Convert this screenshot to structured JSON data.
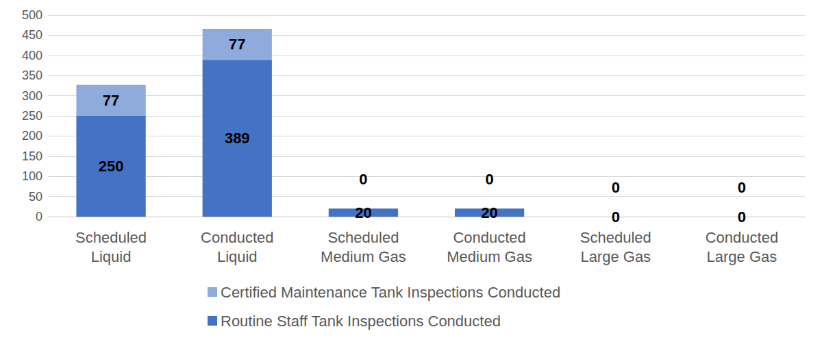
{
  "chart_data": {
    "type": "bar",
    "stacked": true,
    "data_labels": true,
    "grid": true,
    "legend": "bottom",
    "categories": [
      "Scheduled Liquid",
      "Conducted Liquid",
      "Scheduled Medium Gas",
      "Conducted Medium Gas",
      "Scheduled Large Gas",
      "Conducted Large Gas"
    ],
    "series": [
      {
        "name": "Routine Staff Tank Inspections Conducted",
        "color": "#4472c4",
        "values": [
          250,
          389,
          20,
          20,
          0,
          0
        ]
      },
      {
        "name": "Certified Maintenance Tank Inspections Conducted",
        "color": "#8faadc",
        "values": [
          77,
          77,
          0,
          0,
          0,
          0
        ]
      }
    ],
    "ylim": [
      0,
      500
    ],
    "yticks": [
      0,
      50,
      100,
      150,
      200,
      250,
      300,
      350,
      400,
      450,
      500
    ]
  }
}
